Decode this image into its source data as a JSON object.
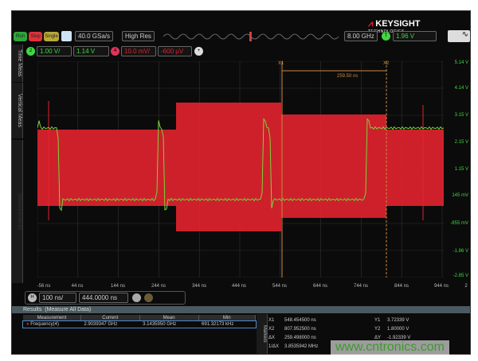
{
  "brand": {
    "name": "KEYSIGHT",
    "sub": "TECHNOLOGIES"
  },
  "toolbar": {
    "run": "Run",
    "stop": "Stop",
    "single": "Single",
    "sample_rate": "40.0 GSa/s",
    "acq_mode": "High Res",
    "bandwidth": "8.00 GHz",
    "trigger_label": "T",
    "trigger_level": "1.96 V"
  },
  "channels": {
    "ch2": {
      "num": "2",
      "scale": "1.00 V/",
      "offset": "1.14 V",
      "color": "#3ed83e"
    },
    "ch4": {
      "num": "4",
      "scale": "10.0 mV/",
      "offset": "-600 µV",
      "color": "#e0232e"
    },
    "add": "+"
  },
  "side_tabs": [
    "Time Meas",
    "Vertical Meas",
    "Measurements"
  ],
  "y_axis": [
    "5.14 V",
    "4.14 V",
    "3.15 V",
    "2.15 V",
    "1.15 V",
    "145 mV",
    "-855 mV",
    "-1.86 V",
    "-2.85 V"
  ],
  "x_axis": [
    "-56 ns",
    "44 ns",
    "144 ns",
    "244 ns",
    "344 ns",
    "444 ns",
    "544 ns",
    "644 ns",
    "744 ns",
    "844 ns",
    "944 ns",
    "2"
  ],
  "cursors": {
    "x1": "X1",
    "x2": "X2",
    "delta": "259.50 ns"
  },
  "horizontal": {
    "label": "H",
    "scale": "100 ns/",
    "position": "444.0000 ns"
  },
  "results": {
    "title": "Results",
    "subtitle": "(Measure All Data)",
    "columns": [
      "Measurement",
      "Current",
      "Mean",
      "Min"
    ],
    "rows": [
      {
        "name": "Frequency(4)",
        "current": "2.9039347 GHz",
        "mean": "3.1435950 GHz",
        "min": "691.32173 kHz"
      }
    ]
  },
  "markers": {
    "title": "Markers",
    "left": [
      [
        "X1",
        "548.454500 ns"
      ],
      [
        "X2",
        "807.952500 ns"
      ],
      [
        "ΔX",
        "259.498000 ns"
      ],
      [
        "1/ΔX",
        "3.8535942 MHz"
      ]
    ],
    "right": [
      [
        "Y1",
        "3.72339 V"
      ],
      [
        "Y2",
        "1.80000 V"
      ],
      [
        "ΔY",
        "-1.92339 V"
      ]
    ]
  },
  "watermark": "www.cntronics.com"
}
